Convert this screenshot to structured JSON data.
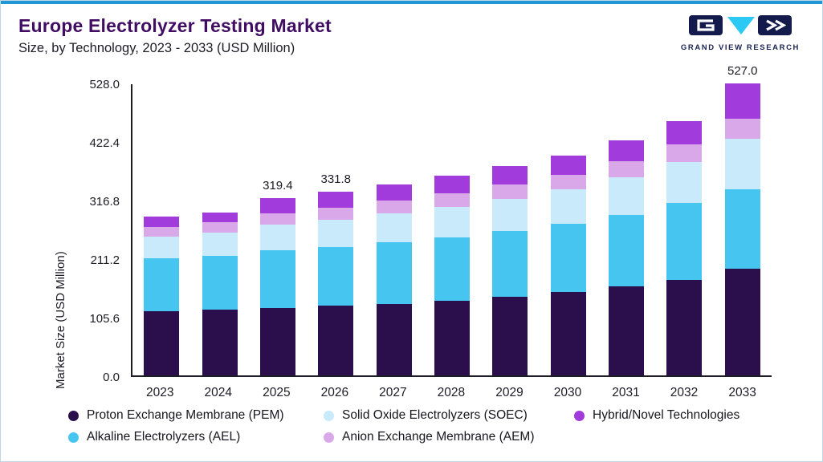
{
  "header": {
    "title": "Europe Electrolyzer Testing Market",
    "subtitle": "Size, by Technology, 2023 - 2033 (USD Million)",
    "logo_text": "GRAND VIEW RESEARCH"
  },
  "chart_data": {
    "type": "bar",
    "stacked": true,
    "title": "Europe Electrolyzer Testing Market Size, by Technology, 2023 - 2033 (USD Million)",
    "ylabel": "Market Size (USD Million)",
    "xlabel": "",
    "ylim": [
      0,
      528.0
    ],
    "yticks": [
      0.0,
      105.6,
      211.2,
      316.8,
      422.4,
      528.0
    ],
    "grid": false,
    "legend_position": "bottom",
    "categories": [
      "2023",
      "2024",
      "2025",
      "2026",
      "2027",
      "2028",
      "2029",
      "2030",
      "2031",
      "2032",
      "2033"
    ],
    "series": [
      {
        "name": "Proton Exchange Membrane (PEM)",
        "color": "#2b0f4c",
        "values": [
          116,
          118,
          122,
          126,
          129,
          135,
          142,
          151,
          160,
          172,
          192
        ]
      },
      {
        "name": "Alkaline Electrolyzers (AEL)",
        "color": "#47c5f1",
        "values": [
          95,
          98,
          103,
          106,
          111,
          114,
          118,
          122,
          130,
          139,
          143
        ]
      },
      {
        "name": "Solid Oxide Electrolyzers (SOEC)",
        "color": "#c9eafb",
        "values": [
          40,
          42,
          47,
          49,
          52,
          55,
          58,
          62,
          68,
          74,
          92
        ]
      },
      {
        "name": "Anion Exchange Membrane (AEM)",
        "color": "#d8a8e8",
        "values": [
          17,
          18,
          20.4,
          21.8,
          23,
          24,
          26,
          27,
          28,
          31,
          36
        ]
      },
      {
        "name": "Hybrid/Novel Technologies",
        "color": "#a23bdb",
        "values": [
          18,
          18,
          27,
          29,
          30,
          32,
          34,
          35,
          38,
          43,
          64
        ]
      }
    ],
    "bar_labels": {
      "2025": "319.4",
      "2026": "331.8",
      "2033": "527.0"
    },
    "legend_order": [
      0,
      2,
      4,
      1,
      3
    ]
  }
}
